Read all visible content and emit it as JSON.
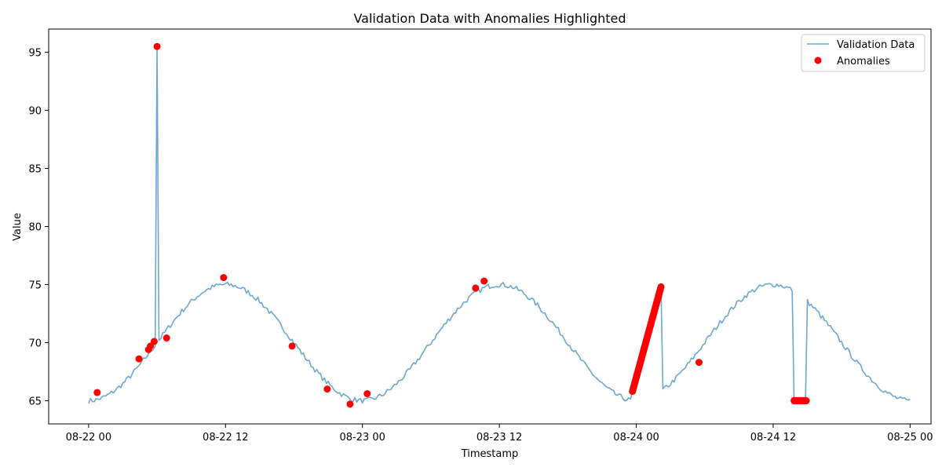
{
  "chart_data": {
    "type": "line",
    "title": "Validation Data with Anomalies Highlighted",
    "xlabel": "Timestamp",
    "ylabel": "Value",
    "x_range": [
      "2023-08-21T20:30",
      "2023-08-25T01:50"
    ],
    "ylim": [
      63,
      97
    ],
    "grid": false,
    "legend_position": "top-right",
    "x_ticks": [
      "08-22 00",
      "08-22 12",
      "08-23 00",
      "08-23 12",
      "08-24 00",
      "08-24 12",
      "08-25 00"
    ],
    "y_ticks": [
      65,
      70,
      75,
      80,
      85,
      90,
      95
    ],
    "series": [
      {
        "name": "Validation Data",
        "kind": "line",
        "color": "#1f77b4",
        "opacity": 0.65,
        "model": "65 + 10*sin^2(pi*(t_hours)/24) with noise",
        "start": "2023-08-22T00:00",
        "end": "2023-08-25T00:00",
        "step_minutes": 10,
        "spike": {
          "time": "2023-08-22T06:00",
          "value": 95.5
        },
        "drift_segment": {
          "start": "2023-08-23T23:40",
          "end": "2023-08-24T02:10",
          "from": 65.8,
          "to": 74.8
        },
        "flat_segment": {
          "start": "2023-08-24T13:50",
          "end": "2023-08-24T14:55",
          "value": 65.0
        }
      },
      {
        "name": "Anomalies",
        "kind": "scatter",
        "color": "#ff0000",
        "points": [
          {
            "x": "2023-08-22T00:45",
            "y": 65.7
          },
          {
            "x": "2023-08-22T04:25",
            "y": 68.6
          },
          {
            "x": "2023-08-22T05:15",
            "y": 69.4
          },
          {
            "x": "2023-08-22T05:25",
            "y": 69.7
          },
          {
            "x": "2023-08-22T05:45",
            "y": 70.1
          },
          {
            "x": "2023-08-22T06:00",
            "y": 95.5
          },
          {
            "x": "2023-08-22T06:50",
            "y": 70.4
          },
          {
            "x": "2023-08-22T11:50",
            "y": 75.6
          },
          {
            "x": "2023-08-22T17:50",
            "y": 69.7
          },
          {
            "x": "2023-08-22T20:55",
            "y": 66.0
          },
          {
            "x": "2023-08-22T22:55",
            "y": 64.7
          },
          {
            "x": "2023-08-23T00:25",
            "y": 65.6
          },
          {
            "x": "2023-08-23T09:55",
            "y": 74.7
          },
          {
            "x": "2023-08-23T10:40",
            "y": 75.3
          },
          {
            "x": "2023-08-24T05:30",
            "y": 68.3
          }
        ],
        "drift_points": {
          "start": "2023-08-23T23:40",
          "end": "2023-08-24T02:10",
          "from": 65.8,
          "to": 74.8,
          "step_minutes": 2
        },
        "flat_points": {
          "start": "2023-08-24T13:50",
          "end": "2023-08-24T14:55",
          "value": 65.0,
          "step_minutes": 2
        }
      }
    ]
  }
}
